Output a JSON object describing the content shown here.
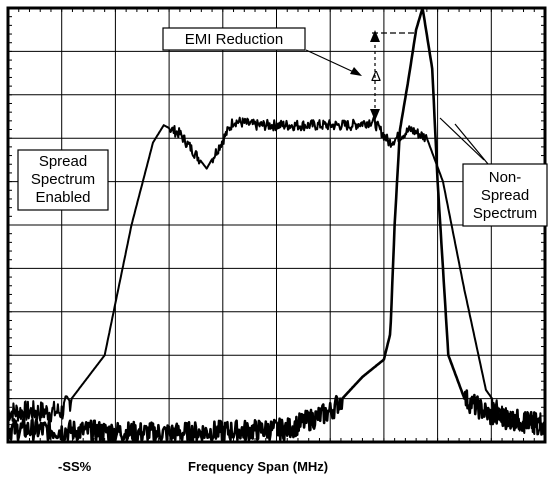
{
  "chart_data": {
    "type": "line",
    "title": "",
    "xlabel": "Frequency Span (MHz)",
    "x_tick_label": "-SS%",
    "ylabel": "",
    "grid": true,
    "x_divisions": 10,
    "y_divisions": 10,
    "xlim": [
      0,
      10
    ],
    "ylim": [
      0,
      10
    ],
    "series": [
      {
        "name": "Spread Spectrum Enabled",
        "points": [
          [
            0,
            0.7
          ],
          [
            1.0,
            0.7
          ],
          [
            1.8,
            2.0
          ],
          [
            2.3,
            5.0
          ],
          [
            2.7,
            6.9
          ],
          [
            2.9,
            7.3
          ],
          [
            3.2,
            7.1
          ],
          [
            3.7,
            6.3
          ],
          [
            4.2,
            7.4
          ],
          [
            4.6,
            7.3
          ],
          [
            5.2,
            7.3
          ],
          [
            5.6,
            7.3
          ],
          [
            6.0,
            7.3
          ],
          [
            6.4,
            7.3
          ],
          [
            6.8,
            7.4
          ],
          [
            7.1,
            6.9
          ],
          [
            7.5,
            7.2
          ],
          [
            7.8,
            7.0
          ],
          [
            8.1,
            6.0
          ],
          [
            8.5,
            3.5
          ],
          [
            8.9,
            1.2
          ],
          [
            9.3,
            0.5
          ],
          [
            10.0,
            0.4
          ]
        ]
      },
      {
        "name": "Non-Spread Spectrum",
        "points": [
          [
            0,
            0.3
          ],
          [
            3.0,
            0.2
          ],
          [
            5.2,
            0.3
          ],
          [
            6.0,
            0.7
          ],
          [
            6.6,
            1.5
          ],
          [
            7.0,
            1.9
          ],
          [
            7.12,
            2.5
          ],
          [
            7.2,
            5.0
          ],
          [
            7.3,
            7.2
          ],
          [
            7.45,
            8.3
          ],
          [
            7.6,
            9.5
          ],
          [
            7.72,
            10.0
          ],
          [
            7.9,
            8.6
          ],
          [
            8.0,
            6.0
          ],
          [
            8.1,
            4.0
          ],
          [
            8.2,
            2.0
          ],
          [
            8.5,
            1.0
          ],
          [
            9.0,
            0.6
          ],
          [
            10.0,
            0.4
          ]
        ]
      }
    ],
    "annotations": [
      {
        "text": "EMI Reduction"
      },
      {
        "text": "Δ"
      },
      {
        "text": "Spread"
      },
      {
        "text": "Spectrum"
      },
      {
        "text": "Enabled"
      },
      {
        "text": "Non-"
      },
      {
        "text": "Spread"
      },
      {
        "text": "Spectrum"
      }
    ]
  }
}
